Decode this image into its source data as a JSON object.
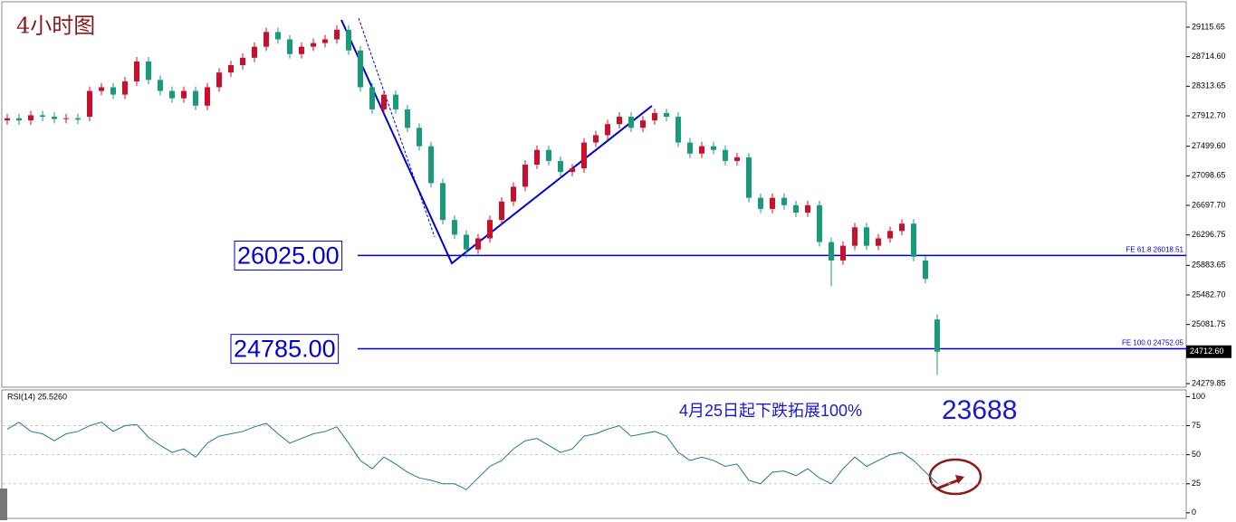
{
  "chart_data": {
    "type": "candlestick",
    "title": "4小时图",
    "up_color": "#c8102e",
    "down_color": "#1a9a7a",
    "open": [
      27850,
      27880,
      27850,
      27920,
      27900,
      27870,
      27880,
      27900,
      28250,
      28300,
      28200,
      28380,
      28650,
      28400,
      28250,
      28150,
      28250,
      28050,
      28300,
      28500,
      28600,
      28700,
      28850,
      29050,
      28950,
      28750,
      28850,
      28900,
      28950,
      29080,
      28800,
      28300,
      28000,
      28200,
      28000,
      27750,
      27500,
      27000,
      26500,
      26300,
      26100,
      26250,
      26500,
      26750,
      26950,
      27250,
      27450,
      27300,
      27150,
      27200,
      27550,
      27650,
      27800,
      27900,
      27750,
      27850,
      27950,
      27900,
      27550,
      27400,
      27500,
      27450,
      27300,
      27350,
      26800,
      26650,
      26800,
      26700,
      26600,
      26700,
      26200,
      25950,
      26150,
      26400,
      26150,
      26250,
      26350,
      26450,
      25950,
      25150
    ],
    "high": [
      27940,
      27940,
      27980,
      27980,
      27960,
      27940,
      27940,
      28310,
      28360,
      28360,
      28440,
      28710,
      28710,
      28460,
      28310,
      28310,
      28310,
      28360,
      28560,
      28660,
      28760,
      28910,
      29110,
      29110,
      29010,
      28910,
      28960,
      29010,
      29140,
      29140,
      28860,
      28360,
      28260,
      28260,
      28060,
      27810,
      27560,
      27060,
      26560,
      26360,
      26310,
      26560,
      26810,
      27010,
      27310,
      27510,
      27510,
      27360,
      27260,
      27610,
      27710,
      27860,
      27960,
      27960,
      27910,
      28010,
      28010,
      27960,
      27610,
      27560,
      27560,
      27510,
      27410,
      27410,
      26860,
      26860,
      26860,
      26760,
      26760,
      26760,
      26260,
      26210,
      26460,
      26460,
      26310,
      26410,
      26510,
      26510,
      26010,
      25220
    ],
    "low": [
      27790,
      27790,
      27790,
      27840,
      27810,
      27810,
      27800,
      27840,
      28190,
      28140,
      28140,
      28320,
      28340,
      28190,
      28090,
      28090,
      27990,
      27990,
      28240,
      28440,
      28540,
      28640,
      28790,
      28890,
      28690,
      28690,
      28790,
      28840,
      28890,
      28740,
      28240,
      27940,
      27940,
      27940,
      27690,
      27440,
      26940,
      26440,
      26240,
      25990,
      26040,
      26190,
      26440,
      26690,
      26890,
      27190,
      27240,
      27090,
      27090,
      27140,
      27490,
      27590,
      27740,
      27690,
      27690,
      27790,
      27840,
      27490,
      27340,
      27340,
      27390,
      27240,
      27240,
      26740,
      26590,
      26590,
      26640,
      26540,
      26540,
      26140,
      25600,
      25890,
      26090,
      26090,
      26090,
      26190,
      26290,
      25940,
      25640,
      24400
    ],
    "close": [
      27880,
      27850,
      27920,
      27900,
      27870,
      27880,
      27860,
      28250,
      28300,
      28200,
      28380,
      28650,
      28400,
      28250,
      28150,
      28250,
      28050,
      28300,
      28500,
      28600,
      28700,
      28850,
      29050,
      28950,
      28750,
      28850,
      28900,
      28950,
      29080,
      28800,
      28300,
      28000,
      28200,
      28000,
      27750,
      27500,
      27000,
      26500,
      26300,
      26100,
      26250,
      26500,
      26750,
      26950,
      27250,
      27450,
      27300,
      27150,
      27200,
      27550,
      27650,
      27800,
      27900,
      27750,
      27850,
      27950,
      27900,
      27550,
      27400,
      27500,
      27450,
      27300,
      27350,
      26800,
      26650,
      26800,
      26700,
      26600,
      26700,
      26200,
      25950,
      26150,
      26400,
      26150,
      26250,
      26350,
      26450,
      26000,
      25700,
      24712.6
    ],
    "ylim": [
      24231,
      29447
    ],
    "yticks": [
      29115.65,
      {
        "value": 28714.6,
        "label": "28714.60"
      },
      28313.65,
      {
        "value": 27912.7,
        "label": "27912.70"
      },
      {
        "value": 27499.6,
        "label": "27499.60"
      },
      27098.65,
      {
        "value": 26697.7,
        "label": "26697.70"
      },
      26296.75,
      25883.65,
      {
        "value": 25482.7,
        "label": "25482.70"
      },
      25081.75,
      24279.85
    ],
    "current_price": {
      "value": 24712.6,
      "label": "24712.60"
    },
    "levels": [
      {
        "value": 26018.51,
        "name": "FE 61.8  26018.51",
        "box": "26025.00"
      },
      {
        "value": 24752.05,
        "name": "FE 100.0  24752.05",
        "box": "24785.00"
      }
    ],
    "level_color": "#0000cc",
    "rsi": {
      "label": "RSI(14) 25.5260",
      "color": "#1f7a8c",
      "values": [
        72,
        78,
        70,
        68,
        62,
        68,
        70,
        75,
        78,
        70,
        75,
        76,
        65,
        58,
        52,
        55,
        48,
        60,
        66,
        68,
        70,
        74,
        77,
        68,
        60,
        64,
        68,
        70,
        74,
        60,
        45,
        38,
        48,
        42,
        35,
        30,
        28,
        25,
        25,
        20,
        30,
        40,
        45,
        55,
        62,
        64,
        58,
        52,
        55,
        66,
        68,
        72,
        75,
        66,
        68,
        70,
        66,
        52,
        45,
        48,
        45,
        40,
        42,
        28,
        25,
        35,
        36,
        32,
        38,
        30,
        25,
        38,
        48,
        40,
        45,
        50,
        52,
        45,
        35,
        25.526
      ],
      "ylim": [
        -4,
        105
      ],
      "yticks": [
        100,
        75,
        50,
        25,
        0
      ]
    },
    "annotations": [
      "4月25日起下跌拓展100%",
      "23688"
    ]
  }
}
